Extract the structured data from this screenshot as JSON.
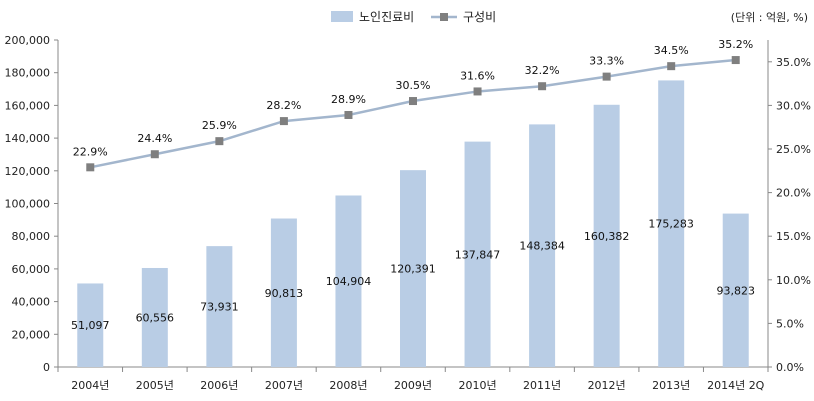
{
  "chart_data": {
    "type": "bar",
    "categories": [
      "2004년",
      "2005년",
      "2006년",
      "2007년",
      "2008년",
      "2009년",
      "2010년",
      "2011년",
      "2012년",
      "2013년",
      "2014년 2Q"
    ],
    "series": [
      {
        "name": "노인진료비",
        "type": "bar",
        "axis": "left",
        "values": [
          51097,
          60556,
          73931,
          90813,
          104904,
          120391,
          137847,
          148384,
          160382,
          175283,
          93823
        ],
        "labels": [
          "51,097",
          "60,556",
          "73,931",
          "90,813",
          "104,904",
          "120,391",
          "137,847",
          "148,384",
          "160,382",
          "175,283",
          "93,823"
        ],
        "color": "#b9cde5"
      },
      {
        "name": "구성비",
        "type": "line",
        "axis": "right",
        "values": [
          22.9,
          24.4,
          25.9,
          28.2,
          28.9,
          30.5,
          31.6,
          32.2,
          33.3,
          34.5,
          35.2
        ],
        "labels": [
          "22.9%",
          "24.4%",
          "25.9%",
          "28.2%",
          "28.9%",
          "30.5%",
          "31.6%",
          "32.2%",
          "33.3%",
          "34.5%",
          "35.2%"
        ],
        "color": "#a3b6cd",
        "marker_color": "#7f7f7f"
      }
    ],
    "left_axis": {
      "ylim": [
        0,
        200000
      ],
      "ticks": [
        0,
        20000,
        40000,
        60000,
        80000,
        100000,
        120000,
        140000,
        160000,
        180000,
        200000
      ],
      "tick_labels": [
        "0",
        "20,000",
        "40,000",
        "60,000",
        "80,000",
        "100,000",
        "120,000",
        "140,000",
        "160,000",
        "180,000",
        "200,000"
      ]
    },
    "right_axis": {
      "ylim": [
        0,
        37.5
      ],
      "ticks": [
        0,
        5,
        10,
        15,
        20,
        25,
        30,
        35
      ],
      "tick_labels": [
        "0.0%",
        "5.0%",
        "10.0%",
        "15.0%",
        "20.0%",
        "25.0%",
        "30.0%",
        "35.0%"
      ]
    },
    "unit_note": "(단위 : 억원, %)",
    "legend_position": "top-center",
    "grid": false
  }
}
